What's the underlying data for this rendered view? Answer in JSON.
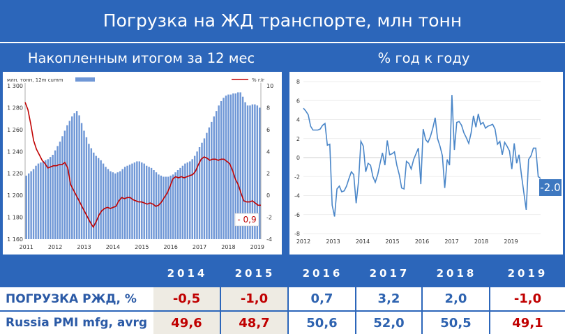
{
  "title": "Погрузка на ЖД транспорте, млн тонн",
  "left_panel_title": "Накопленным итогом за 12 мес",
  "right_panel_title": "% год к году",
  "colors": {
    "background": "#2c66ba",
    "bars": "#6f97d6",
    "red_line": "#c00000",
    "blue_line": "#4a86c8",
    "negative_cell": "#eeebe3"
  },
  "chart_data": [
    {
      "type": "bar",
      "legend": {
        "bars": "млн. тонн, 12m cumm",
        "line": "% г/г",
        "placement": "top"
      },
      "xticks": [
        "2011",
        "2012",
        "2013",
        "2014",
        "2015",
        "2016",
        "2017",
        "2018",
        "2019"
      ],
      "yticks_left": [
        "1 300",
        "1 280",
        "1 260",
        "1 240",
        "1 220",
        "1 200",
        "1 180",
        "1 160"
      ],
      "yticks_right": [
        "10",
        "8",
        "6",
        "4",
        "2",
        "0",
        "-2",
        "-4"
      ],
      "ylim_left": [
        1160,
        1300
      ],
      "ylim_right": [
        -4,
        10
      ],
      "annotation": "- 0,9",
      "series": [
        {
          "name": "млн. тонн, 12m cumm",
          "axis": "left",
          "values": [
            1218,
            1220,
            1222,
            1224,
            1227,
            1229,
            1230,
            1231,
            1232,
            1233,
            1235,
            1237,
            1241,
            1245,
            1249,
            1254,
            1259,
            1264,
            1268,
            1272,
            1275,
            1277,
            1273,
            1266,
            1259,
            1253,
            1247,
            1243,
            1239,
            1236,
            1234,
            1232,
            1229,
            1226,
            1224,
            1222,
            1221,
            1220,
            1221,
            1222,
            1224,
            1226,
            1227,
            1228,
            1229,
            1230,
            1231,
            1231,
            1230,
            1229,
            1227,
            1226,
            1225,
            1223,
            1221,
            1219,
            1218,
            1217,
            1217,
            1217,
            1218,
            1219,
            1221,
            1223,
            1225,
            1227,
            1229,
            1230,
            1231,
            1233,
            1236,
            1240,
            1244,
            1248,
            1252,
            1257,
            1262,
            1267,
            1272,
            1277,
            1282,
            1286,
            1289,
            1291,
            1292,
            1292,
            1293,
            1293,
            1294,
            1294,
            1290,
            1285,
            1282,
            1282,
            1283,
            1283,
            1282,
            1280
          ]
        },
        {
          "name": "% г/г",
          "axis": "right",
          "values": [
            8.5,
            7.8,
            6.5,
            5.0,
            4.2,
            3.7,
            3.2,
            2.9,
            2.5,
            2.6,
            2.7,
            2.7,
            2.8,
            2.8,
            3.0,
            2.5,
            1.0,
            0.5,
            0.0,
            -0.5,
            -1.0,
            -1.5,
            -2.0,
            -2.5,
            -2.9,
            -2.4,
            -1.8,
            -1.4,
            -1.2,
            -1.1,
            -1.2,
            -1.1,
            -1.0,
            -0.5,
            -0.2,
            -0.3,
            -0.2,
            -0.2,
            -0.4,
            -0.5,
            -0.6,
            -0.6,
            -0.7,
            -0.8,
            -0.7,
            -0.8,
            -1.0,
            -0.9,
            -0.6,
            -0.2,
            0.2,
            0.8,
            1.5,
            1.7,
            1.6,
            1.7,
            1.6,
            1.7,
            1.8,
            1.9,
            2.2,
            2.8,
            3.3,
            3.5,
            3.4,
            3.2,
            3.3,
            3.3,
            3.2,
            3.3,
            3.3,
            3.1,
            2.9,
            2.3,
            1.5,
            1.0,
            0.2,
            -0.5,
            -0.6,
            -0.6,
            -0.5,
            -0.7,
            -0.9,
            -0.9
          ]
        }
      ]
    },
    {
      "type": "line",
      "xticks": [
        "2012",
        "2013",
        "2014",
        "2015",
        "2016",
        "2017",
        "2018",
        "2019"
      ],
      "yticks": [
        "8",
        "6",
        "4",
        "2",
        "0",
        "-2",
        "-4",
        "-6",
        "-8"
      ],
      "ylim": [
        -8,
        8
      ],
      "annotation": "-2.0",
      "series": [
        {
          "name": "",
          "values": [
            5.2,
            4.9,
            4.5,
            3.3,
            2.9,
            2.9,
            2.9,
            3.0,
            3.4,
            3.6,
            1.3,
            1.4,
            -5.0,
            -6.2,
            -3.3,
            -3.0,
            -3.6,
            -3.5,
            -3.0,
            -2.2,
            -1.5,
            -1.8,
            -4.8,
            -2.5,
            1.7,
            1.2,
            -1.5,
            -0.6,
            -0.8,
            -2.0,
            -2.6,
            -1.8,
            -0.6,
            0.5,
            -0.8,
            1.8,
            0.3,
            0.4,
            0.6,
            -0.8,
            -1.8,
            -3.2,
            -3.3,
            -0.4,
            -0.6,
            -1.2,
            -0.2,
            0.4,
            1.0,
            -2.8,
            3.0,
            1.9,
            1.6,
            2.2,
            3.1,
            4.2,
            2.0,
            1.2,
            0.2,
            -3.2,
            -0.2,
            -0.8,
            6.6,
            0.8,
            3.7,
            3.8,
            3.4,
            2.6,
            2.1,
            1.5,
            2.6,
            4.4,
            3.2,
            4.6,
            3.5,
            3.7,
            3.1,
            3.3,
            3.4,
            3.5,
            3.0,
            1.4,
            1.7,
            0.3,
            1.6,
            1.2,
            0.7,
            -1.2,
            1.5,
            -0.6,
            0.3,
            -1.8,
            -3.7,
            -5.5,
            -0.2,
            0.2,
            1.0,
            1.0,
            -2.0,
            -2.2
          ]
        }
      ]
    }
  ],
  "table": {
    "years": [
      "2014",
      "2015",
      "2016",
      "2017",
      "2018",
      "2019"
    ],
    "rows": [
      {
        "label": "ПОГРУЗКА РЖД, %",
        "values": [
          "-0,5",
          "-1,0",
          "0,7",
          "3,2",
          "2,0",
          "-1,0"
        ]
      },
      {
        "label": "Russia PMI mfg, avrg",
        "values": [
          "49,6",
          "48,7",
          "50,6",
          "52,0",
          "50,5",
          "49,1"
        ]
      }
    ]
  }
}
